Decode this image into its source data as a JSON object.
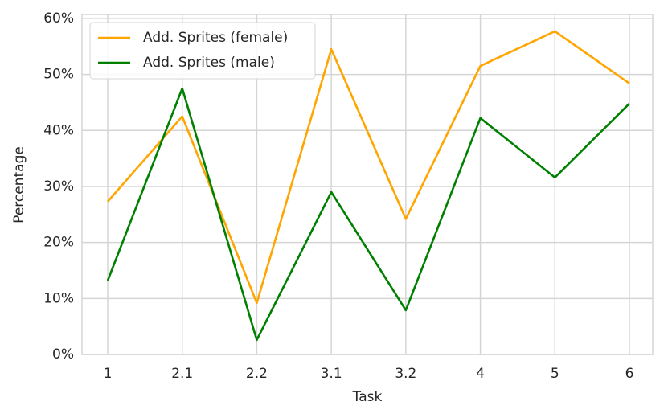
{
  "chart_data": {
    "type": "line",
    "x_label": "Task",
    "y_label": "Percentage",
    "categories": [
      "1",
      "2.1",
      "2.2",
      "3.1",
      "3.2",
      "4",
      "5",
      "6"
    ],
    "series": [
      {
        "name": "Add. Sprites (female)",
        "color": "#ffa500",
        "values": [
          27.3,
          42.5,
          9.2,
          54.5,
          24.2,
          51.5,
          57.7,
          48.4
        ]
      },
      {
        "name": "Add. Sprites (male)",
        "color": "#008000",
        "values": [
          13.2,
          47.5,
          2.6,
          29.0,
          7.9,
          42.2,
          31.6,
          44.8
        ]
      }
    ],
    "ylim": [
      0,
      60.7
    ],
    "yticks": [
      {
        "value": 0,
        "label": "0%"
      },
      {
        "value": 10,
        "label": "10%"
      },
      {
        "value": 20,
        "label": "20%"
      },
      {
        "value": 30,
        "label": "30%"
      },
      {
        "value": 40,
        "label": "40%"
      },
      {
        "value": 50,
        "label": "50%"
      },
      {
        "value": 60,
        "label": "60%"
      }
    ],
    "grid": true,
    "legend": "upper-left"
  }
}
